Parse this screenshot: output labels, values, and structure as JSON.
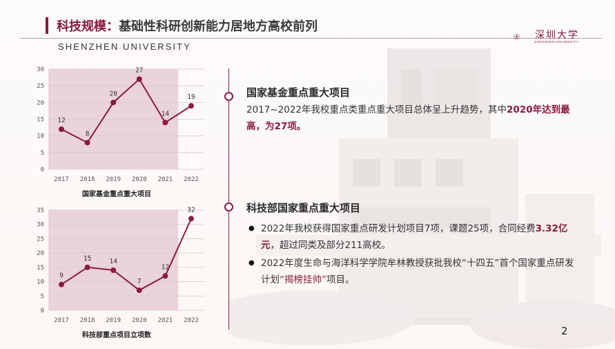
{
  "header": {
    "title_prefix": "科技规模：",
    "title_rest": "基础性科研创新能力居地方高校前列",
    "university_en": "SHENZHEN UNIVERSITY",
    "logo_cn": "深圳大学",
    "logo_en": "SHENZHEN UNIVERSITY"
  },
  "colors": {
    "accent": "#8a1a3e",
    "band": "#ead3da",
    "text": "#333333"
  },
  "chart_data": [
    {
      "type": "line",
      "title": "国家基金重点重大项目",
      "categories": [
        "2017",
        "2018",
        "2019",
        "2020",
        "2021",
        "2022"
      ],
      "values": [
        12,
        8,
        20,
        27,
        14,
        19
      ],
      "ylim": [
        0,
        30
      ],
      "yticks": [
        0,
        5,
        10,
        15,
        20,
        25,
        30
      ],
      "highlight_range": [
        "2017",
        "2021"
      ],
      "data_labels": true
    },
    {
      "type": "line",
      "title": "科技部重点项目立项数",
      "categories": [
        "2017",
        "2018",
        "2019",
        "2020",
        "2021",
        "2022"
      ],
      "values": [
        9,
        15,
        14,
        7,
        12,
        32
      ],
      "ylim": [
        0,
        35
      ],
      "yticks": [
        0,
        5,
        10,
        15,
        20,
        25,
        30,
        35
      ],
      "highlight_range": [
        "2017",
        "2021"
      ],
      "data_labels": true
    }
  ],
  "section1": {
    "title": "国家基金重点重大项目",
    "text_a": "2017~2022年我校重点类重点重大项目总体呈上升趋势，其中",
    "text_b": "2020年达到最高，为27项。"
  },
  "section2": {
    "title": "科技部国家重点重大项目",
    "bullet": "●",
    "b1_a": "2022年我校获得国家重点研发计划项目7项，课题25项，合同经费",
    "b1_b": "3.32亿元",
    "b1_c": "，超过同类及部分211高校。",
    "b2_a": "2022年度生命与海洋科学学院牟林教授获批我校“十四五”首个国家重点研发计划",
    "b2_b": "“揭榜挂帅”",
    "b2_c": "项目。"
  },
  "page_number": "2"
}
